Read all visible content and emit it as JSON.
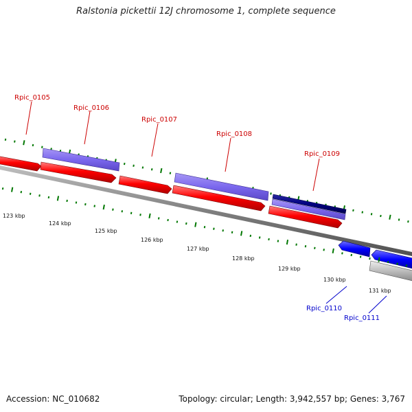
{
  "title": "Ralstonia pickettii 12J chromosome 1, complete sequence",
  "footer": {
    "accession": "Accession: NC_010682",
    "topology": "Topology: circular; Length: 3,942,557 bp; Genes: 3,767"
  },
  "colors": {
    "forward_gene": "#ff0000",
    "reverse_gene": "#0000ff",
    "forward_cds": "#7b68ee",
    "reverse_cds_dark": "#000080",
    "pseudo_gray": "#bbbbbb",
    "backbone": "#808080",
    "tick_green": "#007700",
    "forward_label": "#cc0000",
    "reverse_label": "#0000cc"
  },
  "scale_ticks": [
    "123 kbp",
    "124 kbp",
    "125 kbp",
    "126 kbp",
    "127 kbp",
    "128 kbp",
    "129 kbp",
    "130 kbp",
    "131 kbp"
  ],
  "genes": [
    {
      "label": "Rpic_0105",
      "strand": "forward"
    },
    {
      "label": "Rpic_0106",
      "strand": "forward"
    },
    {
      "label": "Rpic_0107",
      "strand": "forward"
    },
    {
      "label": "Rpic_0108",
      "strand": "forward"
    },
    {
      "label": "Rpic_0109",
      "strand": "forward"
    },
    {
      "label": "Rpic_0110",
      "strand": "reverse"
    },
    {
      "label": "Rpic_0111",
      "strand": "reverse"
    }
  ]
}
